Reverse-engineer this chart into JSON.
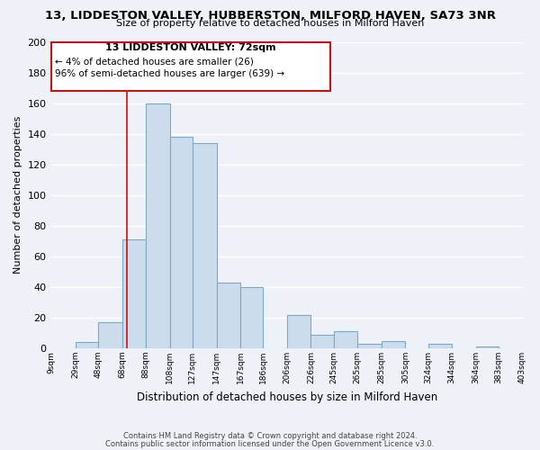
{
  "title": "13, LIDDESTON VALLEY, HUBBERSTON, MILFORD HAVEN, SA73 3NR",
  "subtitle": "Size of property relative to detached houses in Milford Haven",
  "xlabel": "Distribution of detached houses by size in Milford Haven",
  "ylabel": "Number of detached properties",
  "bar_color": "#ccdcec",
  "bar_edge_color": "#7aaac8",
  "background_color": "#eef2f8",
  "annotation_box_color": "#ffffff",
  "annotation_border_color": "#cc1111",
  "vline_color": "#cc1111",
  "vline_x": 72,
  "grid_color": "#ffffff",
  "bins": [
    9,
    29,
    48,
    68,
    88,
    108,
    127,
    147,
    167,
    186,
    206,
    226,
    245,
    265,
    285,
    305,
    324,
    344,
    364,
    383,
    403
  ],
  "bin_labels": [
    "9sqm",
    "29sqm",
    "48sqm",
    "68sqm",
    "88sqm",
    "108sqm",
    "127sqm",
    "147sqm",
    "167sqm",
    "186sqm",
    "206sqm",
    "226sqm",
    "245sqm",
    "265sqm",
    "285sqm",
    "305sqm",
    "324sqm",
    "344sqm",
    "364sqm",
    "383sqm",
    "403sqm"
  ],
  "counts": [
    0,
    4,
    17,
    71,
    160,
    138,
    134,
    43,
    40,
    0,
    22,
    9,
    11,
    3,
    5,
    0,
    3,
    0,
    1,
    0
  ],
  "ylim": [
    0,
    200
  ],
  "yticks": [
    0,
    20,
    40,
    60,
    80,
    100,
    120,
    140,
    160,
    180,
    200
  ],
  "annotation_title": "13 LIDDESTON VALLEY: 72sqm",
  "annotation_line1": "← 4% of detached houses are smaller (26)",
  "annotation_line2": "96% of semi-detached houses are larger (639) →",
  "footer1": "Contains HM Land Registry data © Crown copyright and database right 2024.",
  "footer2": "Contains public sector information licensed under the Open Government Licence v3.0."
}
